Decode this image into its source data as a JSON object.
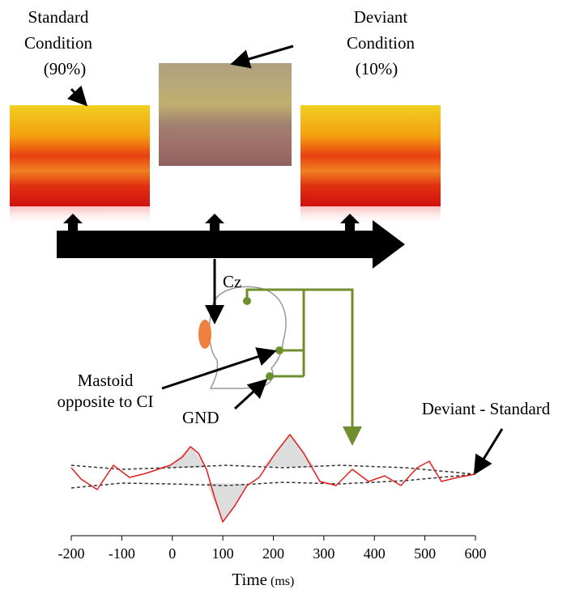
{
  "conditions": [
    {
      "lines": [
        "Standard",
        "Condition",
        "(90%)"
      ]
    },
    {
      "lines": [
        "Deviant",
        "Condition",
        "(10%)"
      ]
    }
  ],
  "electrodes": {
    "top": "Cz",
    "mastoid": [
      "Mastoid",
      "opposite to CI"
    ],
    "ground": "GND"
  },
  "waveform": {
    "label": "Deviant - Standard",
    "x_label": "Time",
    "x_unit": "(ms)",
    "xlim": [
      -200,
      600
    ],
    "xticks": [
      -200,
      -100,
      0,
      100,
      200,
      300,
      400,
      500,
      600
    ]
  }
}
